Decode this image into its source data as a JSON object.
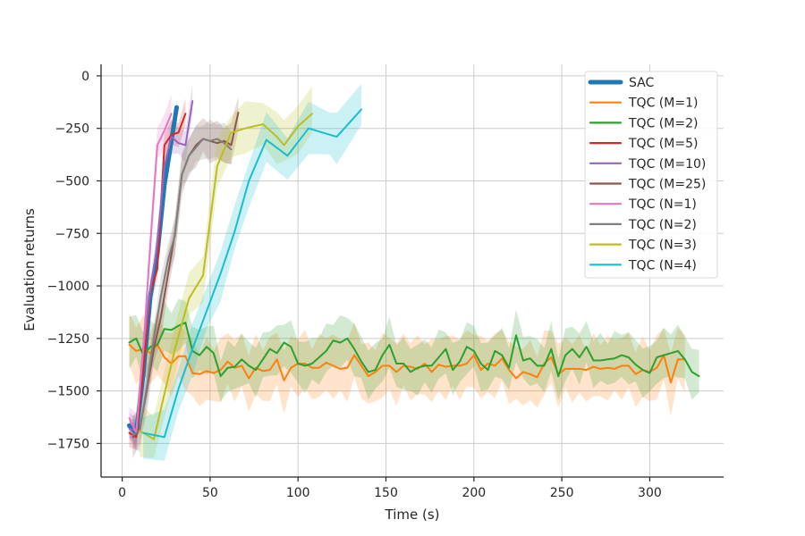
{
  "chart_data": {
    "type": "line",
    "title": "",
    "xlabel": "Time (s)",
    "ylabel": "Evaluation returns",
    "xlim": [
      -12,
      342
    ],
    "ylim": [
      -1910,
      55
    ],
    "xticks": [
      0,
      50,
      100,
      150,
      200,
      250,
      300
    ],
    "xtick_labels": [
      "0",
      "50",
      "100",
      "150",
      "200",
      "250",
      "300"
    ],
    "yticks": [
      0,
      -250,
      -500,
      -750,
      -1000,
      -1250,
      -1500,
      -1750
    ],
    "ytick_labels": [
      "0",
      "−250",
      "−500",
      "−750",
      "−1000",
      "−1250",
      "−1500",
      "−1750"
    ],
    "grid": true,
    "legend_position": "top-right",
    "series": [
      {
        "name": "SAC",
        "color": "#1f77b4",
        "width": 5,
        "x": [
          4,
          8,
          12,
          16,
          20,
          24,
          28,
          31
        ],
        "y": [
          -1665,
          -1700,
          -1420,
          -1050,
          -850,
          -520,
          -310,
          -150
        ],
        "band": 50
      },
      {
        "name": "TQC (M=1)",
        "color": "#ff7f0e",
        "width": 2,
        "x": [
          4,
          8,
          12,
          16,
          20,
          24,
          28,
          32,
          36,
          40,
          44,
          48,
          52,
          56,
          60,
          64,
          68,
          72,
          76,
          80,
          84,
          88,
          92,
          96,
          100,
          104,
          108,
          112,
          116,
          120,
          124,
          128,
          132,
          136,
          140,
          144,
          148,
          152,
          156,
          160,
          164,
          168,
          172,
          176,
          180,
          184,
          188,
          192,
          196,
          200,
          204,
          208,
          212,
          216,
          220,
          224,
          228,
          232,
          236,
          240,
          244,
          248,
          252,
          256,
          260,
          264,
          268,
          272,
          276,
          280,
          284,
          288,
          292,
          296,
          300,
          304,
          308,
          312,
          316,
          320
        ],
        "y": [
          -1280,
          -1310,
          -1300,
          -1320,
          -1280,
          -1340,
          -1370,
          -1335,
          -1335,
          -1415,
          -1420,
          -1405,
          -1415,
          -1400,
          -1360,
          -1390,
          -1380,
          -1440,
          -1390,
          -1405,
          -1400,
          -1350,
          -1450,
          -1390,
          -1370,
          -1370,
          -1390,
          -1390,
          -1365,
          -1380,
          -1395,
          -1390,
          -1330,
          -1380,
          -1430,
          -1410,
          -1380,
          -1380,
          -1410,
          -1380,
          -1385,
          -1395,
          -1370,
          -1410,
          -1375,
          -1385,
          -1380,
          -1380,
          -1370,
          -1330,
          -1400,
          -1370,
          -1380,
          -1345,
          -1400,
          -1440,
          -1410,
          -1420,
          -1435,
          -1370,
          -1340,
          -1420,
          -1395,
          -1395,
          -1395,
          -1400,
          -1385,
          -1395,
          -1390,
          -1395,
          -1380,
          -1380,
          -1420,
          -1400,
          -1410,
          -1390,
          -1330,
          -1460,
          -1350,
          -1350
        ],
        "band": 135
      },
      {
        "name": "TQC (M=2)",
        "color": "#2ca02c",
        "width": 2,
        "x": [
          4,
          8,
          12,
          16,
          20,
          24,
          28,
          32,
          36,
          40,
          44,
          48,
          52,
          56,
          60,
          64,
          68,
          72,
          76,
          80,
          84,
          88,
          92,
          96,
          100,
          104,
          108,
          112,
          116,
          120,
          124,
          128,
          132,
          136,
          140,
          144,
          148,
          152,
          156,
          160,
          164,
          168,
          172,
          176,
          180,
          184,
          188,
          192,
          196,
          200,
          204,
          208,
          212,
          216,
          220,
          224,
          228,
          232,
          236,
          240,
          244,
          248,
          252,
          256,
          260,
          264,
          268,
          272,
          276,
          280,
          284,
          288,
          292,
          296,
          300,
          304,
          308,
          312,
          316,
          320,
          324,
          328
        ],
        "y": [
          -1270,
          -1250,
          -1330,
          -1290,
          -1280,
          -1205,
          -1210,
          -1190,
          -1175,
          -1310,
          -1330,
          -1290,
          -1320,
          -1430,
          -1390,
          -1385,
          -1350,
          -1380,
          -1400,
          -1350,
          -1300,
          -1320,
          -1270,
          -1290,
          -1370,
          -1380,
          -1370,
          -1340,
          -1310,
          -1260,
          -1270,
          -1250,
          -1300,
          -1360,
          -1410,
          -1400,
          -1330,
          -1280,
          -1370,
          -1370,
          -1410,
          -1390,
          -1380,
          -1380,
          -1340,
          -1300,
          -1400,
          -1360,
          -1290,
          -1310,
          -1370,
          -1400,
          -1310,
          -1330,
          -1390,
          -1235,
          -1355,
          -1345,
          -1380,
          -1380,
          -1300,
          -1430,
          -1330,
          -1300,
          -1340,
          -1290,
          -1355,
          -1355,
          -1350,
          -1345,
          -1330,
          -1340,
          -1375,
          -1400,
          -1415,
          -1340,
          -1330,
          -1320,
          -1310,
          -1350,
          -1410,
          -1430
        ],
        "band": 110
      },
      {
        "name": "TQC (M=5)",
        "color": "#d62728",
        "width": 2,
        "x": [
          4,
          8,
          12,
          16,
          20,
          24,
          28,
          32,
          36
        ],
        "y": [
          -1700,
          -1720,
          -1400,
          -1030,
          -920,
          -330,
          -280,
          -270,
          -180
        ],
        "band": 60
      },
      {
        "name": "TQC (M=10)",
        "color": "#9467bd",
        "width": 2,
        "x": [
          4,
          8,
          12,
          16,
          20,
          24,
          28,
          32,
          36,
          40
        ],
        "y": [
          -1680,
          -1690,
          -1300,
          -1020,
          -800,
          -430,
          -290,
          -320,
          -330,
          -120
        ],
        "band": 70
      },
      {
        "name": "TQC (M=25)",
        "color": "#8c564b",
        "width": 2,
        "x": [
          6,
          10,
          14,
          18,
          22,
          26,
          30,
          34,
          38,
          42,
          46,
          50,
          54,
          58,
          62,
          66
        ],
        "y": [
          -1720,
          -1680,
          -1500,
          -1300,
          -1150,
          -950,
          -750,
          -470,
          -380,
          -330,
          -300,
          -310,
          -320,
          -310,
          -330,
          -175
        ],
        "band": 90
      },
      {
        "name": "TQC (N=1)",
        "color": "#e377c2",
        "width": 2,
        "x": [
          4,
          8,
          12,
          16,
          20,
          24,
          28
        ],
        "y": [
          -1630,
          -1700,
          -1300,
          -800,
          -330,
          -260,
          -180
        ],
        "band": 80
      },
      {
        "name": "TQC (N=2)",
        "color": "#7f7f7f",
        "width": 2,
        "x": [
          6,
          10,
          14,
          18,
          22,
          26,
          30,
          34,
          38,
          42,
          46,
          50,
          54,
          58,
          62
        ],
        "y": [
          -1710,
          -1690,
          -1480,
          -1250,
          -1050,
          -880,
          -760,
          -470,
          -380,
          -340,
          -300,
          -310,
          -300,
          -320,
          -350
        ],
        "band": 85
      },
      {
        "name": "TQC (N=3)",
        "color": "#bcbd22",
        "width": 2,
        "x": [
          10,
          18,
          30,
          38,
          46,
          54,
          62,
          70,
          80,
          88,
          92,
          100,
          108
        ],
        "y": [
          -1690,
          -1730,
          -1300,
          -1060,
          -950,
          -430,
          -270,
          -250,
          -230,
          -290,
          -330,
          -240,
          -180
        ],
        "band": 110
      },
      {
        "name": "TQC (N=4)",
        "color": "#17becf",
        "width": 2,
        "x": [
          12,
          24,
          32,
          40,
          48,
          56,
          64,
          72,
          82,
          94,
          106,
          118,
          122,
          136
        ],
        "y": [
          -1700,
          -1720,
          -1490,
          -1300,
          -1120,
          -940,
          -740,
          -500,
          -305,
          -380,
          -250,
          -280,
          -290,
          -160
        ],
        "band": 110
      }
    ]
  }
}
